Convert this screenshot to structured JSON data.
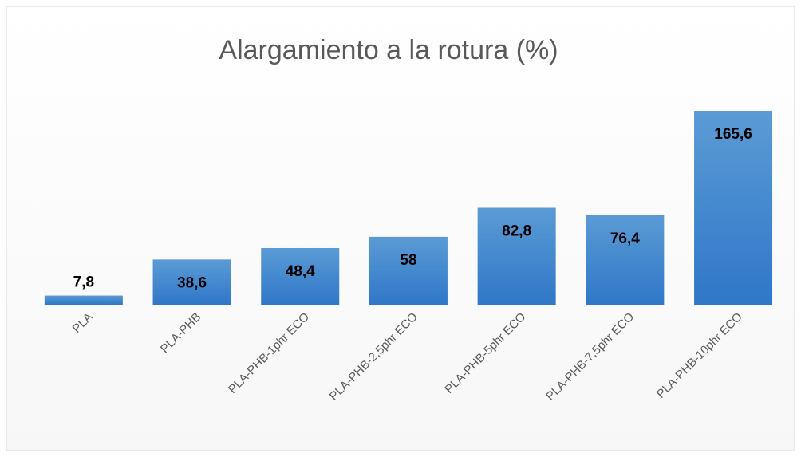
{
  "chart_data": {
    "type": "bar",
    "title": "Alargamiento a la rotura  (%)",
    "categories": [
      "PLA",
      "PLA-PHB",
      "PLA-PHB-1phr ECO",
      "PLA-PHB-2,5phr ECO",
      "PLA-PHB-5phr ECO",
      "PLA-PHB-7,5phr ECO",
      "PLA-PHB-10phr ECO"
    ],
    "values": [
      7.8,
      38.6,
      48.4,
      58,
      82.8,
      76.4,
      165.6
    ],
    "value_labels": [
      "7,8",
      "38,6",
      "48,4",
      "58",
      "82,8",
      "76,4",
      "165,6"
    ],
    "color": "#4a8ad4"
  }
}
